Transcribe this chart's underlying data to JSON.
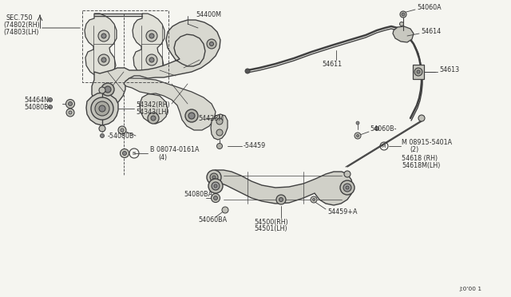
{
  "bg_color": "#f5f5f0",
  "line_color": "#404040",
  "text_color": "#303030",
  "font_size": 6.5,
  "small_font": 5.8,
  "stamp": "J:0'00 1",
  "labels": {
    "sec750_line1": "SEC.750",
    "sec750_line2": "(74802(RH)",
    "sec750_line3": "(74803(LH)",
    "p54400M": "54400M",
    "p54464N": "54464N-",
    "p54080B_1": "54080B-",
    "p54342": "54342(RH)",
    "p54343": "54343(LH)",
    "p54080B_2": "-54080B",
    "p08074": "B 08074-0161A",
    "p08074b": "(4)",
    "p54428M": "54428M",
    "p54459": "-54459",
    "p54611": "54611",
    "p54060B": "54060B-",
    "p08915": "M 08915-5401A",
    "p08915b": "(2)",
    "p54618": "54618 (RH)",
    "p54618M": "54618M(LH)",
    "p54080BA": "54080BA",
    "p54060BA": "54060BA",
    "p54500": "54500(RH)",
    "p54501": "54501(LH)",
    "p54459A": "54459+A",
    "p54060A": "54060A",
    "p54614": "54614",
    "p54613": "54613"
  }
}
